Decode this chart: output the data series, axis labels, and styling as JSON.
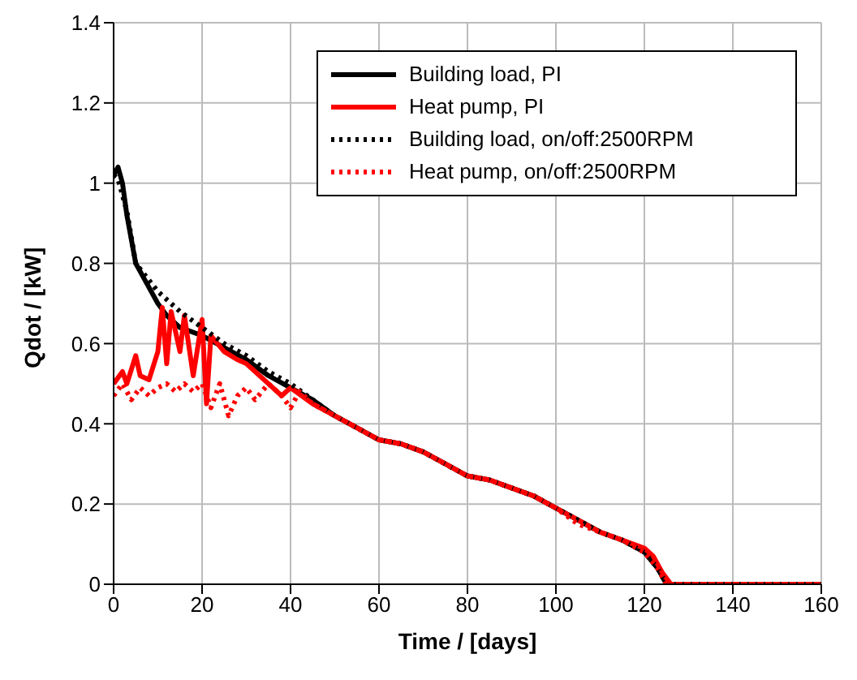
{
  "chart_data": {
    "type": "line",
    "xlabel": "Time / [days]",
    "ylabel": "Qdot / [kW]",
    "xlim": [
      0,
      160
    ],
    "ylim": [
      0,
      1.4
    ],
    "xticks": [
      0,
      20,
      40,
      60,
      80,
      100,
      120,
      140,
      160
    ],
    "yticks": [
      0,
      0.2,
      0.4,
      0.6,
      0.8,
      1,
      1.2,
      1.4
    ],
    "grid": true,
    "legend": "top right",
    "marker": "none",
    "series": [
      {
        "name": "Building load, PI",
        "color": "#000000",
        "line_style": "solid",
        "x": [
          0,
          1,
          2,
          3,
          4,
          5,
          7,
          10,
          12,
          15,
          20,
          25,
          30,
          35,
          40,
          45,
          50,
          55,
          60,
          65,
          70,
          75,
          80,
          85,
          90,
          95,
          100,
          105,
          110,
          115,
          120,
          123,
          125,
          160
        ],
        "values": [
          1.02,
          1.04,
          1.0,
          0.92,
          0.86,
          0.8,
          0.76,
          0.7,
          0.67,
          0.64,
          0.62,
          0.59,
          0.56,
          0.52,
          0.49,
          0.46,
          0.42,
          0.39,
          0.36,
          0.35,
          0.33,
          0.3,
          0.27,
          0.26,
          0.24,
          0.22,
          0.19,
          0.16,
          0.13,
          0.11,
          0.08,
          0.04,
          0,
          0
        ]
      },
      {
        "name": "Heat pump, PI",
        "color": "#ff0000",
        "line_style": "solid",
        "x": [
          0,
          2,
          3,
          5,
          6,
          8,
          10,
          11,
          12,
          13,
          15,
          16,
          18,
          20,
          21,
          22,
          25,
          28,
          30,
          32,
          35,
          38,
          40,
          45,
          50,
          55,
          60,
          65,
          70,
          75,
          80,
          85,
          90,
          95,
          100,
          105,
          110,
          115,
          120,
          122,
          124,
          126,
          160
        ],
        "values": [
          0.5,
          0.53,
          0.5,
          0.57,
          0.52,
          0.51,
          0.58,
          0.69,
          0.55,
          0.68,
          0.58,
          0.67,
          0.52,
          0.66,
          0.45,
          0.62,
          0.58,
          0.56,
          0.55,
          0.53,
          0.5,
          0.47,
          0.49,
          0.45,
          0.42,
          0.39,
          0.36,
          0.35,
          0.33,
          0.3,
          0.27,
          0.26,
          0.24,
          0.22,
          0.19,
          0.16,
          0.13,
          0.11,
          0.09,
          0.07,
          0.03,
          0,
          0
        ]
      },
      {
        "name": "Building load, on/off:2500RPM",
        "color": "#000000",
        "line_style": "dotted",
        "x": [
          0,
          1,
          3,
          5,
          10,
          15,
          20,
          25,
          30,
          35,
          40,
          45,
          50,
          55,
          60,
          65,
          70,
          75,
          80,
          85,
          90,
          95,
          100,
          105,
          110,
          115,
          120,
          123,
          125,
          160
        ],
        "values": [
          1.02,
          1.01,
          0.93,
          0.8,
          0.73,
          0.68,
          0.64,
          0.6,
          0.57,
          0.53,
          0.5,
          0.46,
          0.42,
          0.39,
          0.36,
          0.35,
          0.33,
          0.3,
          0.27,
          0.26,
          0.24,
          0.22,
          0.19,
          0.16,
          0.13,
          0.11,
          0.08,
          0.04,
          0,
          0
        ]
      },
      {
        "name": "Heat pump, on/off:2500RPM",
        "color": "#ff0000",
        "line_style": "dotted",
        "x": [
          0,
          2,
          4,
          6,
          8,
          10,
          12,
          14,
          16,
          18,
          20,
          22,
          24,
          26,
          28,
          30,
          32,
          35,
          38,
          40,
          42,
          45,
          50,
          55,
          60,
          65,
          70,
          75,
          80,
          85,
          90,
          95,
          100,
          105,
          110,
          115,
          120,
          123,
          125,
          160
        ],
        "values": [
          0.47,
          0.5,
          0.46,
          0.49,
          0.47,
          0.49,
          0.5,
          0.48,
          0.5,
          0.48,
          0.5,
          0.44,
          0.5,
          0.42,
          0.47,
          0.49,
          0.46,
          0.5,
          0.47,
          0.44,
          0.48,
          0.45,
          0.42,
          0.39,
          0.36,
          0.35,
          0.33,
          0.3,
          0.27,
          0.26,
          0.24,
          0.22,
          0.19,
          0.15,
          0.13,
          0.11,
          0.08,
          0.04,
          0,
          0
        ]
      }
    ]
  }
}
